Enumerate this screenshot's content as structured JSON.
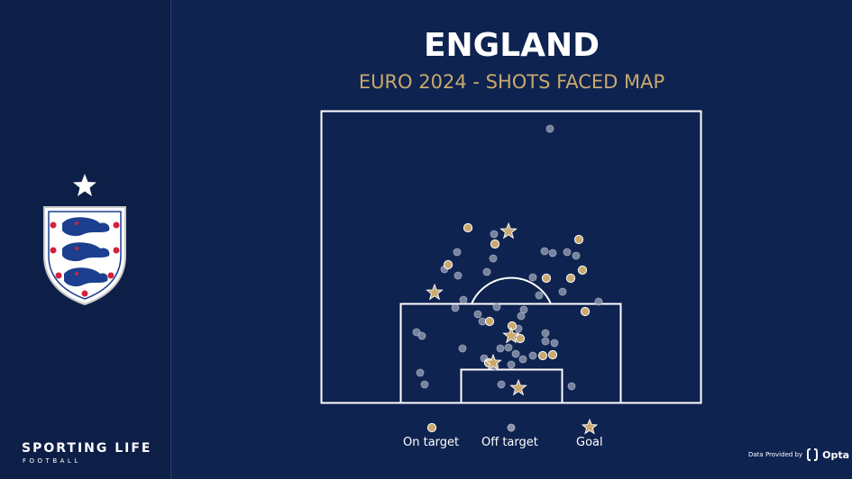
{
  "brand": {
    "name": "SPORTING LIFE",
    "sub": "FOOTBALL"
  },
  "header": {
    "title": "ENGLAND",
    "subtitle": "EURO 2024 - SHOTS FACED MAP"
  },
  "legend": {
    "on_target": "On target",
    "off_target": "Off target",
    "goal": "Goal"
  },
  "credit": {
    "text": "Data Provided by",
    "provider": "Opta"
  },
  "colors": {
    "background": "#0f2350",
    "on_target": "#c9a96e",
    "off_target": "#8a93ab",
    "goal": "#c9a96e"
  },
  "chart_data": {
    "type": "scatter",
    "title": "ENGLAND",
    "subtitle": "EURO 2024 - SHOTS FACED MAP",
    "categories": [
      "On target",
      "Off target",
      "Goal"
    ],
    "series": [
      {
        "name": "On target",
        "points": [
          [
            519,
            253
          ],
          [
            549,
            271
          ],
          [
            642,
            266
          ],
          [
            497,
            294
          ],
          [
            646,
            300
          ],
          [
            606,
            309
          ],
          [
            633,
            309
          ],
          [
            543,
            357
          ],
          [
            649,
            346
          ],
          [
            568,
            362
          ],
          [
            577,
            376
          ],
          [
            602,
            395
          ],
          [
            613,
            394
          ],
          [
            542,
            403
          ]
        ]
      },
      {
        "name": "Off target",
        "points": [
          [
            610,
            143
          ],
          [
            507,
            280
          ],
          [
            548,
            260
          ],
          [
            547,
            287
          ],
          [
            604,
            279
          ],
          [
            613,
            281
          ],
          [
            629,
            280
          ],
          [
            493,
            299
          ],
          [
            540,
            302
          ],
          [
            639,
            284
          ],
          [
            508,
            306
          ],
          [
            591,
            308
          ],
          [
            624,
            324
          ],
          [
            664,
            335
          ],
          [
            514,
            333
          ],
          [
            505,
            342
          ],
          [
            530,
            349
          ],
          [
            578,
            351
          ],
          [
            598,
            328
          ],
          [
            581,
            344
          ],
          [
            535,
            357
          ],
          [
            551,
            341
          ],
          [
            462,
            369
          ],
          [
            468,
            373
          ],
          [
            575,
            365
          ],
          [
            605,
            370
          ],
          [
            605,
            379
          ],
          [
            615,
            381
          ],
          [
            513,
            387
          ],
          [
            555,
            387
          ],
          [
            564,
            386
          ],
          [
            591,
            395
          ],
          [
            572,
            393
          ],
          [
            580,
            399
          ],
          [
            537,
            398
          ],
          [
            567,
            405
          ],
          [
            549,
            407
          ],
          [
            466,
            414
          ],
          [
            471,
            427
          ],
          [
            556,
            427
          ],
          [
            634,
            429
          ]
        ]
      },
      {
        "name": "Goal",
        "points": [
          [
            564,
            257
          ],
          [
            482,
            325
          ],
          [
            567,
            373
          ],
          [
            547,
            403
          ],
          [
            575,
            431
          ]
        ]
      }
    ]
  }
}
